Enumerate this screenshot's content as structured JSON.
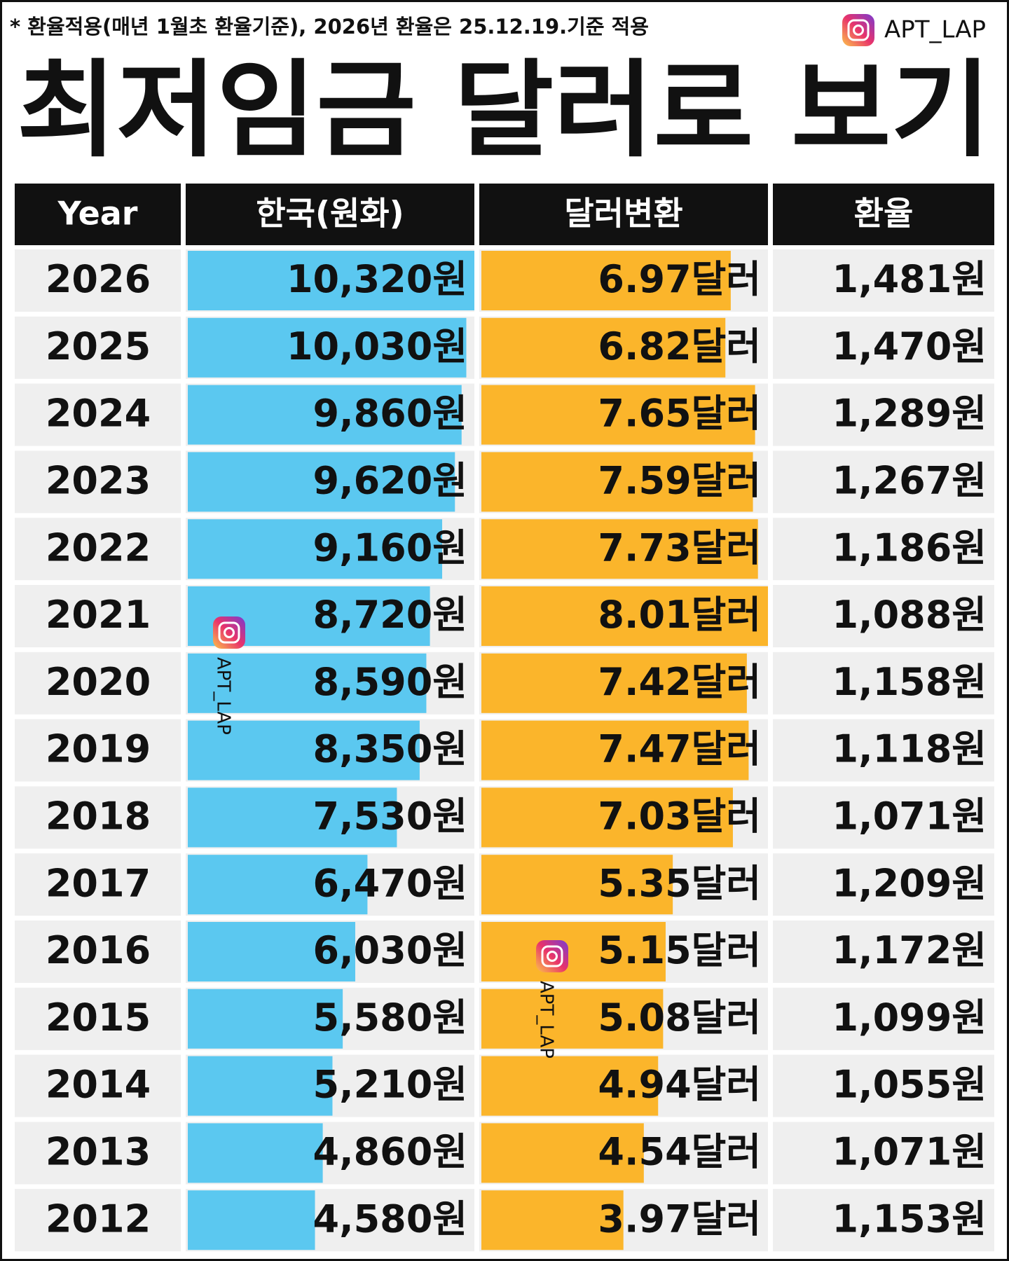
{
  "chart_data": {
    "type": "table-bar",
    "subtitle": "* 환율적용(매년 1월초 환율기준), 2026년 환율은 25.12.19.기준 적용",
    "brand": "APT_LAP",
    "title": "최저임금 달러로 보기",
    "columns": [
      "Year",
      "한국(원화)",
      "달러변환",
      "환율"
    ],
    "categories": [
      "2026",
      "2025",
      "2024",
      "2023",
      "2022",
      "2021",
      "2020",
      "2019",
      "2018",
      "2017",
      "2016",
      "2015",
      "2014",
      "2013",
      "2012"
    ],
    "series": [
      {
        "name": "한국(원화)",
        "color": "#5bc8f0",
        "values": [
          10320,
          10030,
          9860,
          9620,
          9160,
          8720,
          8590,
          8350,
          7530,
          6470,
          6030,
          5580,
          5210,
          4860,
          4580
        ],
        "value_labels": [
          "10,320원",
          "10,030원",
          "9,860원",
          "9,620원",
          "9,160원",
          "8,720원",
          "8,590원",
          "8,350원",
          "7,530원",
          "6,470원",
          "6,030원",
          "5,580원",
          "5,210원",
          "4,860원",
          "4,580원"
        ]
      },
      {
        "name": "달러변환",
        "color": "#fbb52b",
        "values": [
          6.97,
          6.82,
          7.65,
          7.59,
          7.73,
          8.01,
          7.42,
          7.47,
          7.03,
          5.35,
          5.15,
          5.08,
          4.94,
          4.54,
          3.97
        ],
        "value_labels": [
          "6.97달러",
          "6.82달러",
          "7.65달러",
          "7.59달러",
          "7.73달러",
          "8.01달러",
          "7.42달러",
          "7.47달러",
          "7.03달러",
          "5.35달러",
          "5.15달러",
          "5.08달러",
          "4.94달러",
          "4.54달러",
          "3.97달러"
        ]
      }
    ],
    "rate_labels": [
      "1,481원",
      "1,470원",
      "1,289원",
      "1,267원",
      "1,186원",
      "1,088원",
      "1,158원",
      "1,118원",
      "1,071원",
      "1,209원",
      "1,172원",
      "1,099원",
      "1,055원",
      "1,071원",
      "1,153원"
    ]
  }
}
